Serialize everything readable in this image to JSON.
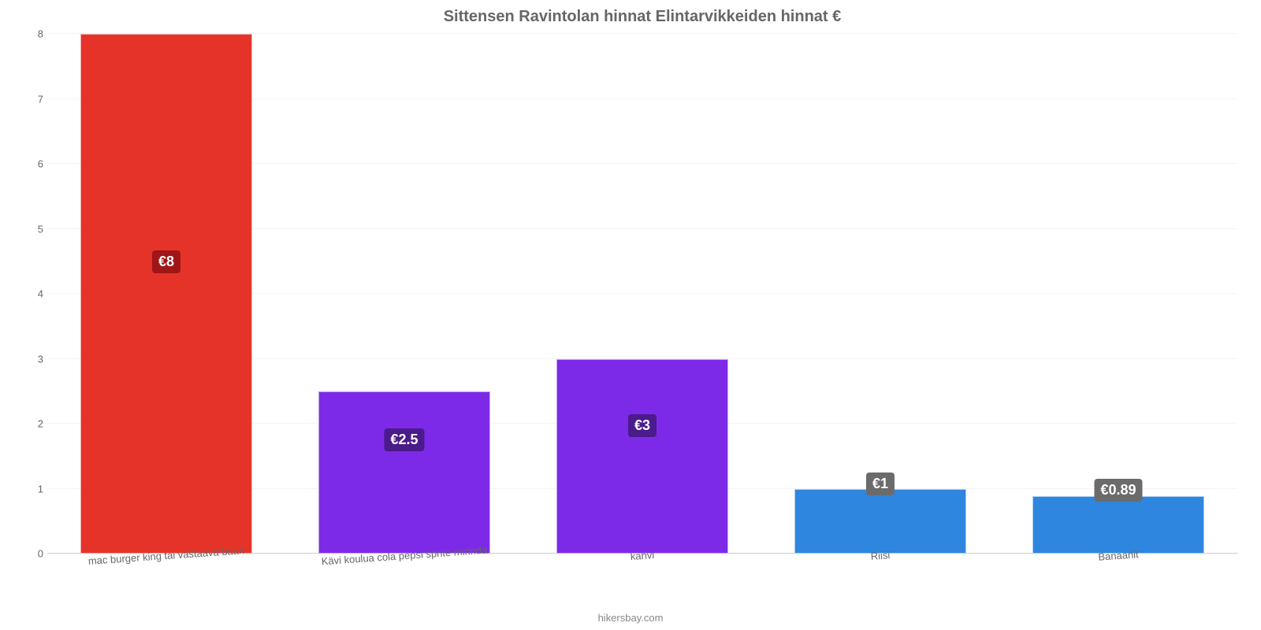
{
  "chart": {
    "type": "bar",
    "title": "Sittensen Ravintolan hinnat Elintarvikkeiden hinnat €",
    "title_fontsize": 20,
    "title_color": "#666666",
    "background_color": "#ffffff",
    "grid_color": "#f5f5f5",
    "axis_line_color": "#cccccc",
    "axis_label_color": "#666666",
    "axis_fontsize": 13,
    "ylim": [
      0,
      8
    ],
    "ytick_step": 1,
    "yticks": [
      "0",
      "1",
      "2",
      "3",
      "4",
      "5",
      "6",
      "7",
      "8"
    ],
    "bar_width_pct": 72,
    "value_label_fontsize": 18,
    "value_label_color": "#ffffff",
    "value_label_radius": 4,
    "categories": [
      "mac burger king tai vastaava baari",
      "Kävi koulua cola pepsi sprite mirinda",
      "kahvi",
      "Riisi",
      "Banaanit"
    ],
    "values": [
      8,
      2.5,
      3,
      1,
      0.89
    ],
    "display_values": [
      "€8",
      "€2.5",
      "€3",
      "€1",
      "€0.89"
    ],
    "bar_colors": [
      "#e6332a",
      "#7d2ae8",
      "#7d2ae8",
      "#2e86de",
      "#2e86de"
    ],
    "label_bg_colors": [
      "#a01616",
      "#4a1b8a",
      "#4a1b8a",
      "#6b6b6b",
      "#6b6b6b"
    ],
    "label_y_from_bottom_pct": [
      54,
      63,
      60,
      90,
      90
    ],
    "credits": "hikersbay.com"
  }
}
